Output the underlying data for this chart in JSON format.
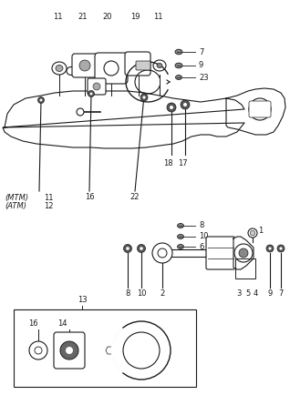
{
  "bg_color": "#ffffff",
  "line_color": "#1a1a1a",
  "text_color": "#1a1a1a",
  "fig_width": 3.18,
  "fig_height": 4.34,
  "dpi": 100
}
